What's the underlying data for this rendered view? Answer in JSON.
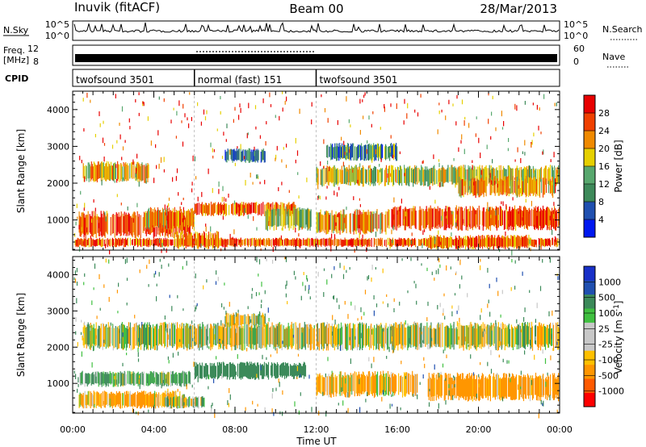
{
  "header": {
    "station": "Inuvik (fitACF)",
    "beam": "Beam 00",
    "date": "28/Mar/2013"
  },
  "noise_panel": {
    "left_label": "N.Sky",
    "right_label": "N.Search",
    "left_ticks": [
      "10^5",
      "10^0"
    ],
    "right_ticks": [
      "10^5",
      "10^0"
    ]
  },
  "freq_panel": {
    "left_label_line1": "Freq.",
    "left_label_line2": "[MHz]",
    "left_ticks": [
      "12",
      "8"
    ],
    "right_ticks": [
      "60",
      "0"
    ],
    "right_label": "Nave"
  },
  "cpid_panel": {
    "label": "CPID",
    "segments": [
      {
        "start": 0,
        "end": 6,
        "name": "twofsound 3501"
      },
      {
        "start": 6,
        "end": 12,
        "name": "normal (fast) 151"
      },
      {
        "start": 12,
        "end": 24,
        "name": "twofsound 3501"
      }
    ]
  },
  "colors": {
    "power_scale": [
      "#0018f0",
      "#2050b0",
      "#3e8a5a",
      "#58a86e",
      "#e6d000",
      "#f08a00",
      "#f04000",
      "#e80000"
    ],
    "velocity_scale": [
      "#ff0000",
      "#ff5a00",
      "#ff9600",
      "#ffc000",
      "#c8c8c8",
      "#c8c8c8",
      "#40c040",
      "#3c8a5a",
      "#2050b0",
      "#1830c8"
    ],
    "ground_scatter": "#c8c8c8"
  },
  "chart_data": [
    {
      "type": "heatmap",
      "name": "power",
      "xlabel": "",
      "ylabel": "Slant Range [km]",
      "xlim": [
        0,
        24
      ],
      "ylim": [
        180,
        4500
      ],
      "yticks": [
        "1000",
        "2000",
        "3000",
        "4000"
      ],
      "colorbar": {
        "label": "Power [dB]",
        "ticks": [
          "4",
          "8",
          "12",
          "16",
          "20",
          "24",
          "28"
        ],
        "range": [
          0,
          30
        ]
      },
      "bands": [
        {
          "t0": 0.1,
          "t1": 24.0,
          "r0": 260,
          "r1": 520,
          "value": 24
        },
        {
          "t0": 0.3,
          "t1": 5.8,
          "r0": 500,
          "r1": 1250,
          "value": 26
        },
        {
          "t0": 3.5,
          "t1": 6.0,
          "r0": 700,
          "r1": 1350,
          "value": 20
        },
        {
          "t0": 5.0,
          "t1": 7.2,
          "r0": 200,
          "r1": 700,
          "value": 22
        },
        {
          "t0": 6.0,
          "t1": 11.0,
          "r0": 1100,
          "r1": 1500,
          "value": 24
        },
        {
          "t0": 9.5,
          "t1": 11.8,
          "r0": 700,
          "r1": 1400,
          "value": 14
        },
        {
          "t0": 12.0,
          "t1": 15.5,
          "r0": 600,
          "r1": 1300,
          "value": 20
        },
        {
          "t0": 15.5,
          "t1": 24.0,
          "r0": 700,
          "r1": 1400,
          "value": 24
        },
        {
          "t0": 17.5,
          "t1": 22.5,
          "r0": 200,
          "r1": 600,
          "value": 22
        },
        {
          "t0": 0.5,
          "t1": 3.8,
          "r0": 2000,
          "r1": 2600,
          "value": 18
        },
        {
          "t0": 7.5,
          "t1": 9.5,
          "r0": 2550,
          "r1": 2950,
          "value": 8
        },
        {
          "t0": 12.0,
          "t1": 24.0,
          "r0": 1900,
          "r1": 2500,
          "value": 16
        },
        {
          "t0": 19.0,
          "t1": 23.8,
          "r0": 1600,
          "r1": 2200,
          "value": 20
        },
        {
          "t0": 12.5,
          "t1": 16.0,
          "r0": 2600,
          "r1": 3100,
          "value": 10
        }
      ]
    },
    {
      "type": "heatmap",
      "name": "velocity",
      "xlabel": "Time UT",
      "ylabel": "Slant Range [km]",
      "xlim": [
        0,
        24
      ],
      "ylim": [
        180,
        4500
      ],
      "xticks": [
        "00:00",
        "04:00",
        "08:00",
        "12:00",
        "16:00",
        "20:00",
        "00:00"
      ],
      "yticks": [
        "1000",
        "2000",
        "3000",
        "4000"
      ],
      "colorbar": {
        "label": "Velocity [m s-1]",
        "ticks": [
          "-1000",
          "-500",
          "-100",
          "-25",
          "25",
          "100",
          "500",
          "1000"
        ]
      },
      "bands": [
        {
          "t0": 0.3,
          "t1": 5.8,
          "r0": 900,
          "r1": 1350,
          "value": 150
        },
        {
          "t0": 0.3,
          "t1": 5.5,
          "r0": 300,
          "r1": 800,
          "value": -150
        },
        {
          "t0": 6.0,
          "t1": 11.5,
          "r0": 1100,
          "r1": 1600,
          "value": 300
        },
        {
          "t0": 12.0,
          "t1": 17.0,
          "r0": 600,
          "r1": 1350,
          "value": -150
        },
        {
          "t0": 17.5,
          "t1": 24.0,
          "r0": 500,
          "r1": 1300,
          "value": -200
        },
        {
          "t0": 0.5,
          "t1": 24.0,
          "r0": 1900,
          "r1": 2700,
          "value": 0
        },
        {
          "t0": 7.5,
          "t1": 9.5,
          "r0": 2550,
          "r1": 2950,
          "value": 0
        },
        {
          "t0": 4.5,
          "t1": 6.5,
          "r0": 300,
          "r1": 650,
          "value": 0
        }
      ]
    }
  ]
}
